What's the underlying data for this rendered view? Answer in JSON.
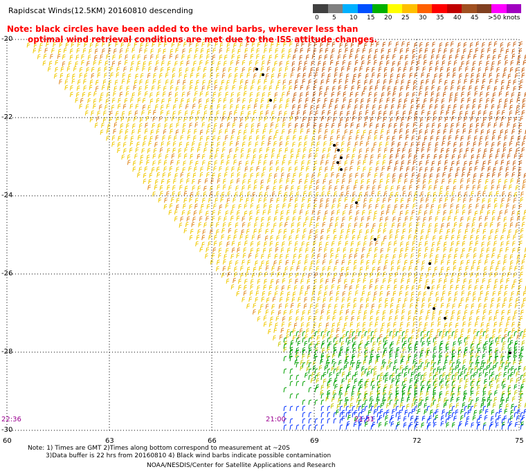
{
  "title": "Rapidscat Winds(12.5KM) 20160810 descending",
  "note_red": {
    "line1": "Note: black circles have been added to the wind barbs, wherever less than",
    "line2": "optimal wind retrieval conditions are met due to the ISS attitude changes."
  },
  "colorbar": {
    "labels": [
      "0",
      "5",
      "10",
      "15",
      "20",
      "25",
      "30",
      "35",
      "40",
      "45",
      ">50 knots"
    ],
    "colors": [
      "#404040",
      "#808080",
      "#00b0ff",
      "#0050ff",
      "#00b000",
      "#ffff00",
      "#ffc000",
      "#ff6000",
      "#ff0000",
      "#c00000",
      "#a05020",
      "#804020",
      "#ff00ff",
      "#a000c0"
    ]
  },
  "map": {
    "lat_labels": [
      "-20",
      "-22",
      "-24",
      "-26",
      "-28",
      "-30"
    ],
    "lon_labels": [
      "60",
      "63",
      "66",
      "69",
      "72",
      "75"
    ],
    "lat_values": [
      -20,
      -22,
      -24,
      -26,
      -28,
      -30
    ],
    "lon_values": [
      60,
      63,
      66,
      69,
      72,
      75
    ],
    "lat_range": [
      -20,
      -30
    ],
    "lon_range": [
      60,
      75
    ],
    "time_labels": [
      "22:36",
      "21:00",
      "21:31"
    ]
  },
  "footer": {
    "note1": "Note: 1) Times are GMT 2)Times along bottom correspond to measurement at ~20S",
    "note2": "3)Data buffer is 22 hrs from 20160810 4) Black wind barbs indicate possible contamination",
    "credit": "NOAA/NESDIS/Center for Satellite Applications and Research"
  }
}
